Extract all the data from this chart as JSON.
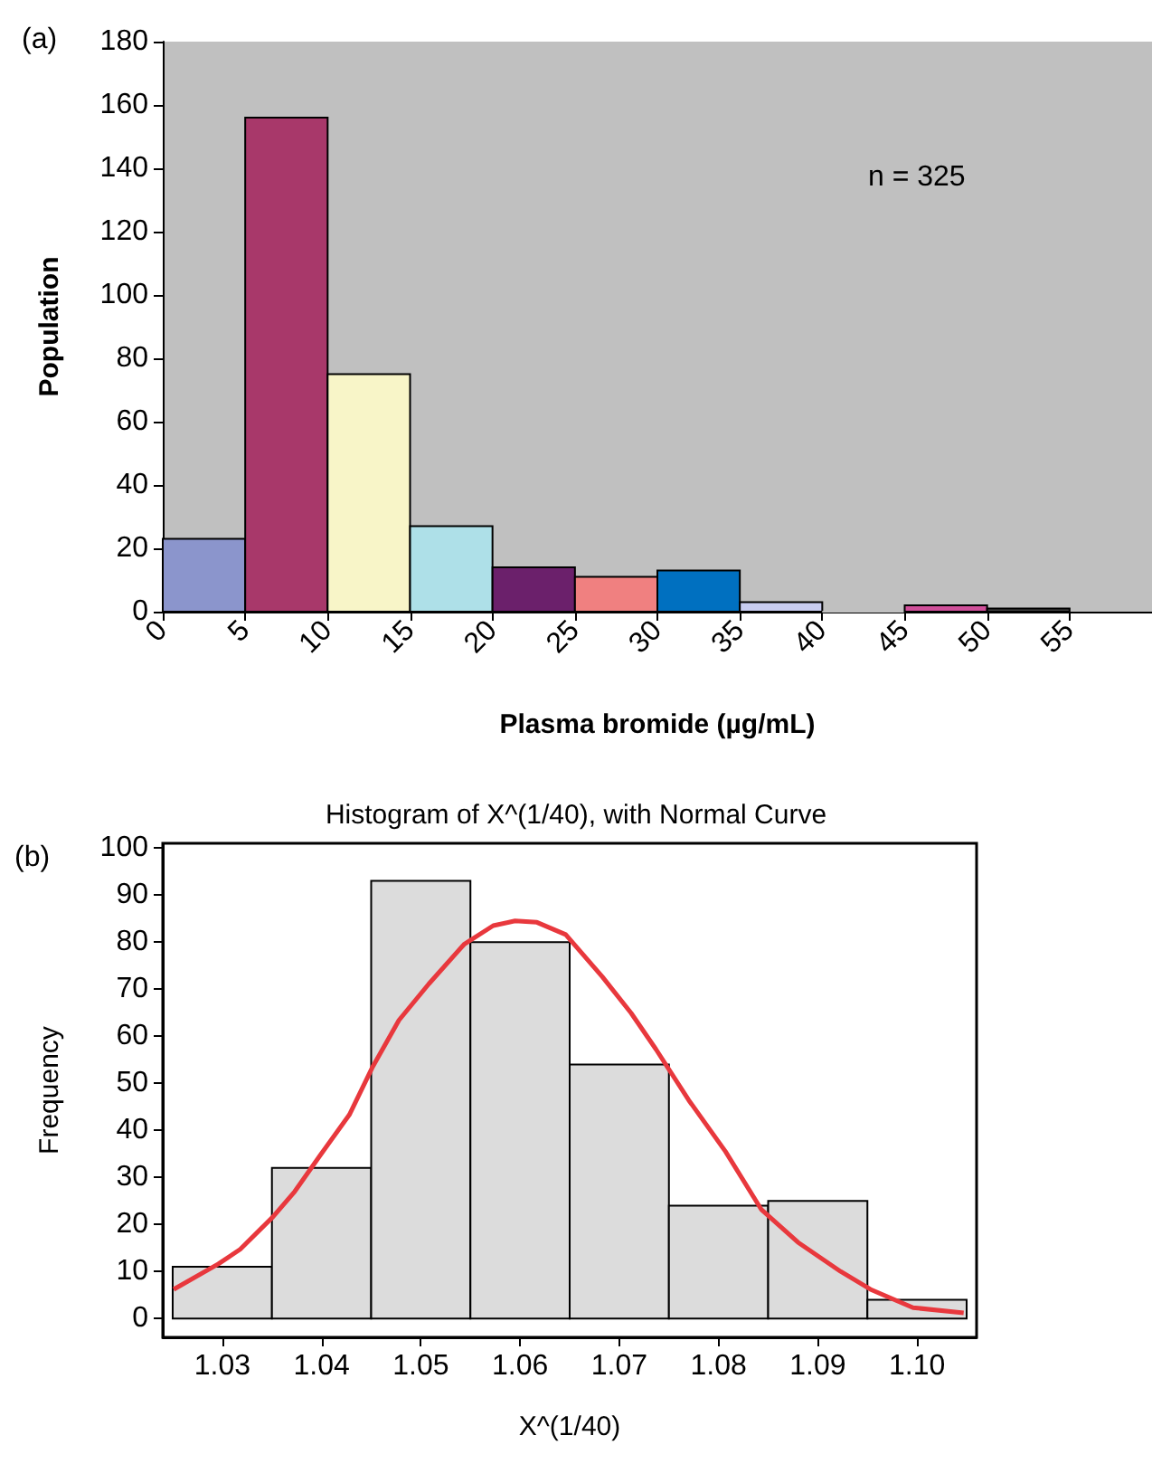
{
  "chart_data": [
    {
      "type": "histogram",
      "xlabel": "Plasma bromide (µg/mL)",
      "ylabel": "Population",
      "annotations": [
        "(a)",
        "n = 325"
      ],
      "bins": [
        0,
        5,
        10,
        15,
        20,
        25,
        30,
        35,
        40,
        45,
        50,
        55
      ],
      "values": [
        23,
        156,
        75,
        27,
        14,
        11,
        13,
        3,
        0,
        2,
        1
      ],
      "colors": [
        "#8b95cc",
        "#a8386a",
        "#f8f5c8",
        "#aee0e8",
        "#6b206b",
        "#f08080",
        "#0070c0",
        "#c8ccf0",
        "#c0c0c0",
        "#d0509a",
        "#404040"
      ],
      "xlim": [
        0,
        60
      ],
      "xticks": [
        0,
        5,
        10,
        15,
        20,
        25,
        30,
        35,
        40,
        45,
        50,
        55
      ],
      "ylim": [
        0,
        180
      ],
      "yticks": [
        0,
        20,
        40,
        60,
        80,
        100,
        120,
        140,
        160,
        180
      ]
    },
    {
      "type": "histogram",
      "title": "Histogram of X^(1/40), with Normal Curve",
      "xlabel": "X^(1/40)",
      "ylabel": "Frequency",
      "annotations": [
        "(b)"
      ],
      "bins": [
        1.025,
        1.035,
        1.045,
        1.055,
        1.065,
        1.075,
        1.085,
        1.095,
        1.105
      ],
      "marker": "none",
      "series": [
        {
          "type": "histogram",
          "color": "#dcdcdc",
          "values": [
            11,
            32,
            93,
            80,
            54,
            24,
            25,
            4
          ]
        },
        {
          "type": "line",
          "color": "#e8383d",
          "x": [
            1.0251,
            1.0296,
            1.0318,
            1.0351,
            1.0373,
            1.0399,
            1.0428,
            1.0451,
            1.0478,
            1.0508,
            1.0544,
            1.0573,
            1.0595,
            1.0617,
            1.0646,
            1.0683,
            1.0712,
            1.0737,
            1.077,
            1.0807,
            1.0843,
            1.088,
            1.0923,
            1.0953,
            1.0996,
            1.1047
          ],
          "values": [
            6.2,
            11.6,
            14.7,
            21.6,
            27,
            34.8,
            43.3,
            53.3,
            63.4,
            71.1,
            79.6,
            83.5,
            84.5,
            84.2,
            81.6,
            72.6,
            64.9,
            57.2,
            46.4,
            35.5,
            23.2,
            16.2,
            10,
            6.2,
            2.3,
            1.2
          ]
        }
      ],
      "xlim": [
        1.024,
        1.106
      ],
      "xticks": [
        1.03,
        1.04,
        1.05,
        1.06,
        1.07,
        1.08,
        1.09,
        {
          "value": 1.1,
          "label": "1.10"
        }
      ],
      "ylim": [
        -4,
        101
      ],
      "yticks": [
        0,
        10,
        20,
        30,
        40,
        50,
        60,
        70,
        80,
        90,
        100
      ]
    }
  ]
}
